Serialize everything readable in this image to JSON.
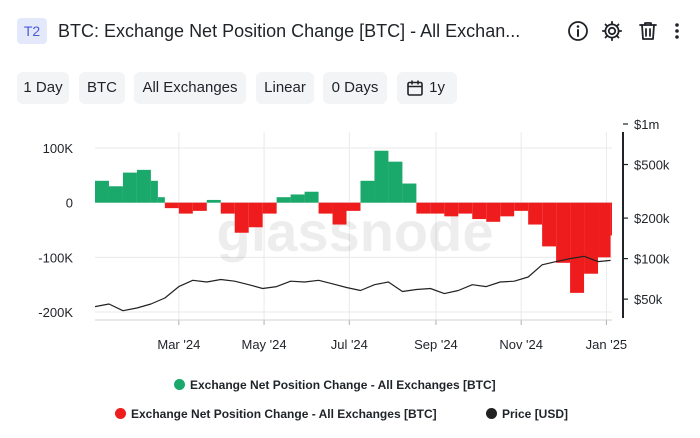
{
  "header": {
    "badge": "T2",
    "title": "BTC: Exchange Net Position Change [BTC] - All Exchan...",
    "icons": [
      "info-icon",
      "gear-icon",
      "trash-icon",
      "more-vertical-icon"
    ]
  },
  "toolbar": {
    "resolution": "1 Day",
    "asset": "BTC",
    "exchange": "All Exchanges",
    "scale": "Linear",
    "smoothing": "0 Days",
    "range": "1y"
  },
  "watermark": "glassnode",
  "legend": {
    "positive": "Exchange Net Position Change - All Exchanges [BTC]",
    "negative": "Exchange Net Position Change - All Exchanges [BTC]",
    "price": "Price [USD]"
  },
  "colors": {
    "positive": "#1aa86b",
    "negative": "#ee1c1c",
    "price": "#222222",
    "grid": "#e9e9e9"
  },
  "chart_data": {
    "type": "bar",
    "x_ticks": [
      "Mar '24",
      "May '24",
      "Jul '24",
      "Sep '24",
      "Nov '24",
      "Jan '25"
    ],
    "y_left_ticks": [
      "100K",
      "0",
      "-100K",
      "-200K"
    ],
    "y_left_range": [
      -200000,
      100000
    ],
    "y_right_ticks": [
      "$1m",
      "$500k",
      "$200k",
      "$100k",
      "$50k"
    ],
    "y_right_scale": "log",
    "y_right_range": [
      30000,
      1000000
    ],
    "grid": true,
    "legend_position": "bottom",
    "series": [
      {
        "name": "Exchange Net Position Change - All Exchanges [BTC]",
        "kind": "bar",
        "x": [
          "2024-01-01",
          "2024-01-11",
          "2024-01-21",
          "2024-01-31",
          "2024-02-10",
          "2024-02-15",
          "2024-02-20",
          "2024-03-01",
          "2024-03-11",
          "2024-03-21",
          "2024-03-31",
          "2024-04-10",
          "2024-04-20",
          "2024-04-30",
          "2024-05-10",
          "2024-05-20",
          "2024-05-30",
          "2024-06-09",
          "2024-06-19",
          "2024-06-29",
          "2024-07-09",
          "2024-07-19",
          "2024-07-29",
          "2024-08-08",
          "2024-08-18",
          "2024-08-28",
          "2024-09-07",
          "2024-09-17",
          "2024-09-27",
          "2024-10-07",
          "2024-10-17",
          "2024-10-27",
          "2024-11-06",
          "2024-11-16",
          "2024-11-26",
          "2024-12-06",
          "2024-12-16",
          "2024-12-26",
          "2025-01-04"
        ],
        "values": [
          40000,
          30000,
          55000,
          60000,
          40000,
          10000,
          -10000,
          -20000,
          -15000,
          5000,
          -20000,
          -55000,
          -45000,
          -20000,
          10000,
          15000,
          20000,
          -20000,
          -40000,
          -15000,
          40000,
          95000,
          75000,
          35000,
          -20000,
          -20000,
          -25000,
          -20000,
          -30000,
          -35000,
          -25000,
          -15000,
          -40000,
          -80000,
          -110000,
          -165000,
          -130000,
          -100000,
          -60000
        ]
      },
      {
        "name": "Price [USD]",
        "kind": "line",
        "axis": "right",
        "x": [
          "2024-01-01",
          "2024-01-11",
          "2024-01-21",
          "2024-01-31",
          "2024-02-10",
          "2024-02-20",
          "2024-03-01",
          "2024-03-11",
          "2024-03-21",
          "2024-03-31",
          "2024-04-10",
          "2024-04-20",
          "2024-04-30",
          "2024-05-10",
          "2024-05-20",
          "2024-05-30",
          "2024-06-09",
          "2024-06-19",
          "2024-06-29",
          "2024-07-09",
          "2024-07-19",
          "2024-07-29",
          "2024-08-08",
          "2024-08-18",
          "2024-08-28",
          "2024-09-07",
          "2024-09-17",
          "2024-09-27",
          "2024-10-07",
          "2024-10-17",
          "2024-10-27",
          "2024-11-06",
          "2024-11-16",
          "2024-11-26",
          "2024-12-06",
          "2024-12-16",
          "2024-12-26",
          "2025-01-04"
        ],
        "values": [
          44000,
          46000,
          41000,
          43000,
          46000,
          51000,
          62000,
          69000,
          67000,
          70000,
          68000,
          64000,
          60000,
          62000,
          68000,
          67000,
          69000,
          65000,
          61000,
          58000,
          64000,
          67000,
          57000,
          59000,
          60000,
          55000,
          58000,
          64000,
          62000,
          67000,
          68000,
          73000,
          90000,
          95000,
          100000,
          104000,
          95000,
          97000
        ]
      }
    ]
  }
}
